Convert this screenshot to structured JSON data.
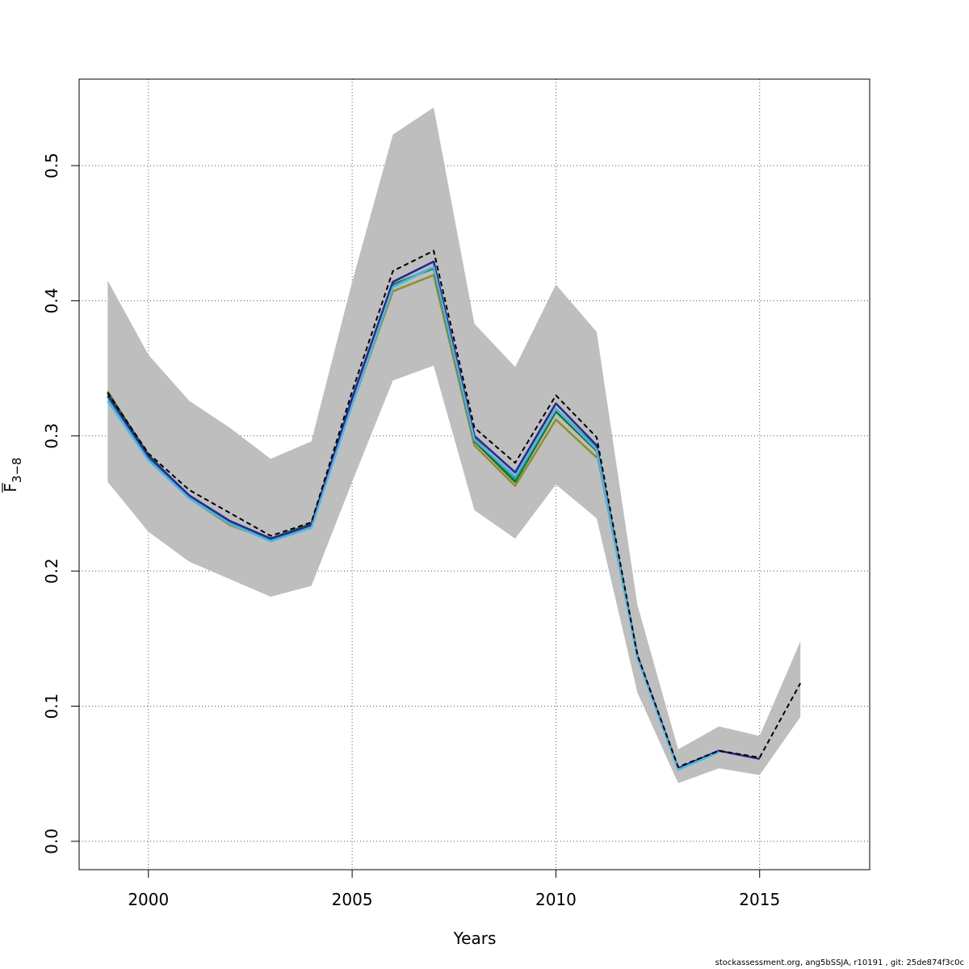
{
  "chart_data": {
    "type": "line",
    "title": "",
    "xlabel": "Years",
    "ylabel_base": "F",
    "ylabel_sub": "3−8",
    "xlim": [
      1998.3,
      2017.7
    ],
    "ylim": [
      -0.021,
      0.564
    ],
    "x_ticks": [
      2000,
      2005,
      2010,
      2015
    ],
    "x_tick_labels": [
      "2000",
      "2005",
      "2010",
      "2015"
    ],
    "y_ticks": [
      0.0,
      0.1,
      0.2,
      0.3,
      0.4,
      0.5
    ],
    "y_tick_labels": [
      "0.0",
      "0.1",
      "0.2",
      "0.3",
      "0.4",
      "0.5"
    ],
    "grid": true,
    "confidence_band": {
      "x": [
        1999,
        2000,
        2001,
        2002,
        2003,
        2004,
        2005,
        2006,
        2007,
        2008,
        2009,
        2010,
        2011,
        2012,
        2013,
        2014,
        2015,
        2016
      ],
      "lower": [
        0.266,
        0.229,
        0.207,
        0.194,
        0.181,
        0.189,
        0.266,
        0.341,
        0.352,
        0.245,
        0.224,
        0.264,
        0.239,
        0.11,
        0.043,
        0.054,
        0.049,
        0.092
      ],
      "upper": [
        0.415,
        0.36,
        0.326,
        0.306,
        0.283,
        0.296,
        0.414,
        0.523,
        0.543,
        0.383,
        0.351,
        0.412,
        0.377,
        0.175,
        0.068,
        0.085,
        0.078,
        0.148
      ],
      "color": "#bebebe"
    },
    "series": [
      {
        "name": "olive",
        "color": "#8f8f2e",
        "dashed": false,
        "x": [
          1999,
          2000,
          2001,
          2002,
          2003,
          2004,
          2005,
          2006,
          2007,
          2008,
          2009,
          2010,
          2011
        ],
        "values": [
          0.333,
          0.285,
          0.254,
          0.234,
          0.223,
          0.234,
          0.323,
          0.407,
          0.419,
          0.293,
          0.263,
          0.312,
          0.284
        ]
      },
      {
        "name": "dark-green",
        "color": "#1a6e1a",
        "dashed": false,
        "x": [
          1999,
          2000,
          2001,
          2002,
          2003,
          2004,
          2005,
          2006,
          2007,
          2008,
          2009,
          2010,
          2011,
          2012
        ],
        "values": [
          0.332,
          0.286,
          0.255,
          0.236,
          0.224,
          0.235,
          0.326,
          0.412,
          0.424,
          0.296,
          0.266,
          0.318,
          0.289,
          0.137
        ]
      },
      {
        "name": "teal",
        "color": "#1f9b8f",
        "dashed": false,
        "x": [
          1999,
          2000,
          2001,
          2002,
          2003,
          2004,
          2005,
          2006,
          2007,
          2008,
          2009,
          2010,
          2011,
          2012
        ],
        "values": [
          0.329,
          0.284,
          0.255,
          0.236,
          0.223,
          0.234,
          0.326,
          0.411,
          0.425,
          0.298,
          0.268,
          0.32,
          0.291,
          0.137
        ]
      },
      {
        "name": "navy",
        "color": "#2a2a8f",
        "dashed": false,
        "x": [
          1999,
          2000,
          2001,
          2002,
          2003,
          2004,
          2005,
          2006,
          2007,
          2008,
          2009,
          2010,
          2011,
          2012,
          2013,
          2014,
          2015
        ],
        "values": [
          0.33,
          0.285,
          0.256,
          0.237,
          0.224,
          0.234,
          0.328,
          0.414,
          0.429,
          0.3,
          0.273,
          0.324,
          0.293,
          0.137,
          0.054,
          0.067,
          0.061
        ]
      },
      {
        "name": "sky-blue",
        "color": "#4ab6e6",
        "dashed": false,
        "x": [
          1999,
          2000,
          2001,
          2002,
          2003,
          2004,
          2005,
          2006,
          2007,
          2008,
          2009,
          2010,
          2011,
          2012,
          2013,
          2014
        ],
        "values": [
          0.326,
          0.282,
          0.254,
          0.235,
          0.222,
          0.232,
          0.323,
          0.41,
          0.425,
          0.297,
          0.27,
          0.32,
          0.29,
          0.136,
          0.053,
          0.066
        ]
      },
      {
        "name": "estimate-dashed",
        "color": "#000000",
        "dashed": true,
        "x": [
          1999,
          2000,
          2001,
          2002,
          2003,
          2004,
          2005,
          2006,
          2007,
          2008,
          2009,
          2010,
          2011,
          2012,
          2013,
          2014,
          2015,
          2016
        ],
        "values": [
          0.332,
          0.287,
          0.26,
          0.243,
          0.226,
          0.236,
          0.333,
          0.422,
          0.437,
          0.306,
          0.28,
          0.33,
          0.299,
          0.138,
          0.055,
          0.067,
          0.062,
          0.117
        ]
      }
    ]
  },
  "footer": "stockassessment.org, ang5bSSJA, r10191 , git: 25de874f3c0c"
}
